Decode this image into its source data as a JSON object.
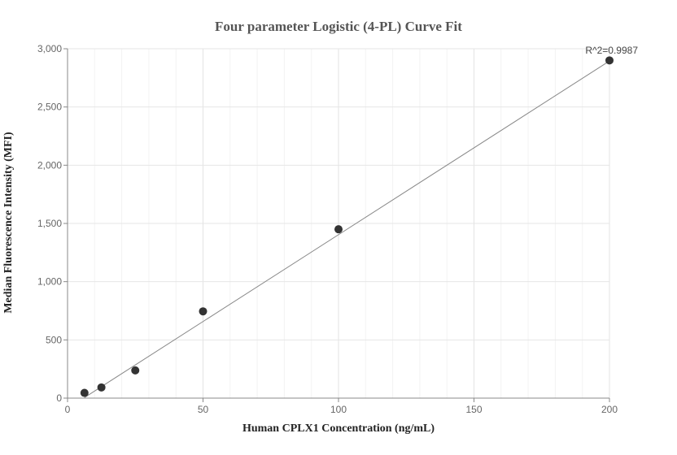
{
  "chart_data": {
    "type": "scatter",
    "title": "Four parameter Logistic (4-PL) Curve Fit",
    "xlabel": "Human CPLX1 Concentration (ng/mL)",
    "ylabel": "Median Fluorescence Intensity (MFI)",
    "xlim": [
      0,
      200
    ],
    "ylim": [
      0,
      3000
    ],
    "x_ticks": [
      0,
      50,
      100,
      150,
      200
    ],
    "y_ticks": [
      0,
      500,
      1000,
      1500,
      2000,
      2500,
      3000
    ],
    "x_tick_labels": [
      "0",
      "50",
      "100",
      "150",
      "200"
    ],
    "y_tick_labels": [
      "0",
      "500",
      "1,000",
      "1,500",
      "2,000",
      "2,500",
      "3,000"
    ],
    "grid": true,
    "series": [
      {
        "points": [
          {
            "x": 6.25,
            "y": 45
          },
          {
            "x": 12.5,
            "y": 92
          },
          {
            "x": 25,
            "y": 238
          },
          {
            "x": 50,
            "y": 745
          },
          {
            "x": 100,
            "y": 1450
          },
          {
            "x": 200,
            "y": 2900
          }
        ],
        "color": "#333333"
      }
    ],
    "fit_curve": {
      "x": [
        6.25,
        200
      ],
      "y": [
        5,
        2895
      ],
      "color": "#888888"
    },
    "annotation": "R^2=0.9987"
  }
}
